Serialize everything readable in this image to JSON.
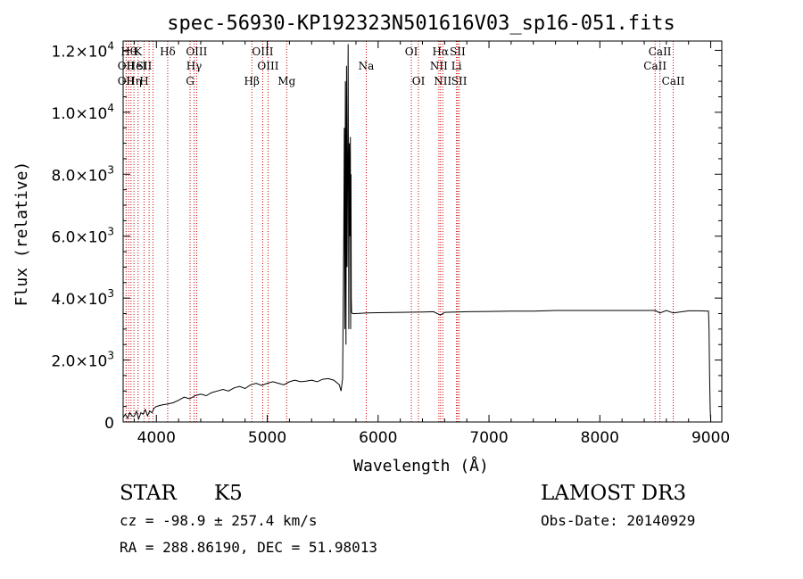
{
  "chart_data": {
    "type": "line",
    "title": "spec-56930-KP192323N501616V03_sp16-051.fits",
    "xlabel": "Wavelength (Å)",
    "ylabel": "Flux (relative)",
    "xlim": [
      3700,
      9100
    ],
    "ylim": [
      0,
      12300
    ],
    "x_ticks": [
      {
        "value": 4000,
        "label": "4000"
      },
      {
        "value": 5000,
        "label": "5000"
      },
      {
        "value": 6000,
        "label": "6000"
      },
      {
        "value": 7000,
        "label": "7000"
      },
      {
        "value": 8000,
        "label": "8000"
      },
      {
        "value": 9000,
        "label": "9000"
      }
    ],
    "y_ticks": [
      {
        "value": 0,
        "mant": "0",
        "exp": ""
      },
      {
        "value": 2000,
        "mant": "2.0×10",
        "exp": "3"
      },
      {
        "value": 4000,
        "mant": "4.0×10",
        "exp": "3"
      },
      {
        "value": 6000,
        "mant": "6.0×10",
        "exp": "3"
      },
      {
        "value": 8000,
        "mant": "8.0×10",
        "exp": "3"
      },
      {
        "value": 10000,
        "mant": "1.0×10",
        "exp": "4"
      },
      {
        "value": 12000,
        "mant": "1.2×10",
        "exp": "4"
      }
    ],
    "series": [
      {
        "x": [
          3700,
          3720,
          3740,
          3760,
          3780,
          3800,
          3820,
          3840,
          3860,
          3880,
          3900,
          3920,
          3940,
          3960,
          3980,
          4000,
          4050,
          4100,
          4150,
          4200,
          4250,
          4300,
          4350,
          4400,
          4450,
          4500,
          4550,
          4600,
          4650,
          4700,
          4750,
          4800,
          4850,
          4900,
          4950,
          5000,
          5050,
          5100,
          5150,
          5200,
          5250,
          5300,
          5350,
          5400,
          5450,
          5500,
          5550,
          5600,
          5650,
          5665,
          5680,
          5690,
          5695,
          5700,
          5705,
          5710,
          5715,
          5720,
          5725,
          5730,
          5735,
          5740,
          5745,
          5750,
          5752,
          5755,
          5758,
          5760,
          5770,
          5800,
          5900,
          6000,
          6200,
          6400,
          6500,
          6562,
          6600,
          6800,
          7000,
          7200,
          7400,
          7600,
          7800,
          8000,
          8200,
          8400,
          8500,
          8542,
          8600,
          8662,
          8800,
          8900,
          8980,
          8985,
          8990,
          8995,
          9000
        ],
        "y": [
          150,
          250,
          120,
          300,
          200,
          180,
          350,
          100,
          300,
          250,
          400,
          200,
          350,
          300,
          450,
          500,
          550,
          580,
          620,
          700,
          800,
          750,
          850,
          900,
          850,
          950,
          1000,
          1050,
          1000,
          1100,
          1150,
          1080,
          1200,
          1250,
          1180,
          1250,
          1300,
          1250,
          1200,
          1300,
          1350,
          1300,
          1320,
          1350,
          1300,
          1380,
          1400,
          1350,
          1200,
          1000,
          1400,
          6000,
          9500,
          3000,
          11000,
          2500,
          11500,
          5000,
          8000,
          12200,
          3000,
          9000,
          6000,
          9200,
          3000,
          8000,
          4000,
          3550,
          3500,
          3500,
          3520,
          3530,
          3540,
          3550,
          3560,
          3450,
          3540,
          3560,
          3570,
          3580,
          3580,
          3600,
          3600,
          3600,
          3600,
          3600,
          3600,
          3520,
          3600,
          3520,
          3590,
          3590,
          3580,
          3000,
          1500,
          400,
          0
        ]
      }
    ],
    "line_ids": [
      {
        "x": 3750,
        "row": 1,
        "label": "Hθ"
      },
      {
        "x": 3727,
        "row": 2,
        "label": "OII"
      },
      {
        "x": 3727,
        "row": 3,
        "label": "OII"
      },
      {
        "x": 3797,
        "row": 3,
        "label": "Hη"
      },
      {
        "x": 3835,
        "row": 1,
        "label": "K"
      },
      {
        "x": 3820,
        "row": 2,
        "label": "HeI"
      },
      {
        "x": 3889,
        "row": 2,
        "label": "SII"
      },
      {
        "x": 3889,
        "row": 3,
        "label": "H"
      },
      {
        "x": 4102,
        "row": 1,
        "label": "Hδ"
      },
      {
        "x": 4363,
        "row": 1,
        "label": "OIII"
      },
      {
        "x": 4340,
        "row": 2,
        "label": "Hγ"
      },
      {
        "x": 4304,
        "row": 3,
        "label": "G"
      },
      {
        "x": 4861,
        "row": 3,
        "label": "Hβ"
      },
      {
        "x": 4959,
        "row": 1,
        "label": "OIII"
      },
      {
        "x": 5007,
        "row": 2,
        "label": "OIII"
      },
      {
        "x": 5175,
        "row": 3,
        "label": "Mg"
      },
      {
        "x": 5893,
        "row": 2,
        "label": "Na"
      },
      {
        "x": 6300,
        "row": 1,
        "label": "OI"
      },
      {
        "x": 6364,
        "row": 3,
        "label": "OI"
      },
      {
        "x": 6563,
        "row": 1,
        "label": "Hα"
      },
      {
        "x": 6548,
        "row": 2,
        "label": "NII"
      },
      {
        "x": 6583,
        "row": 3,
        "label": "NII"
      },
      {
        "x": 6717,
        "row": 1,
        "label": "SII"
      },
      {
        "x": 6707,
        "row": 2,
        "label": "Li"
      },
      {
        "x": 6731,
        "row": 3,
        "label": "SII"
      },
      {
        "x": 8542,
        "row": 1,
        "label": "CaII"
      },
      {
        "x": 8498,
        "row": 2,
        "label": "CaII"
      },
      {
        "x": 8662,
        "row": 3,
        "label": "CaII"
      }
    ],
    "line_marks": [
      3727,
      3750,
      3771,
      3797,
      3835,
      3889,
      3934,
      3970,
      4102,
      4304,
      4340,
      4363,
      4861,
      4959,
      5007,
      5175,
      5893,
      6300,
      6364,
      6548,
      6563,
      6583,
      6707,
      6717,
      6731,
      8498,
      8542,
      8662
    ],
    "colors": {
      "line_marker": "#cc0000",
      "spectrum": "#000000"
    }
  },
  "footer": {
    "object_class": "STAR",
    "subclass": "K5",
    "survey": "LAMOST DR3",
    "cz": "cz = -98.9 ± 257.4 km/s",
    "obs_date": "Obs-Date: 20140929",
    "coords": "RA = 288.86190, DEC =  51.98013"
  }
}
